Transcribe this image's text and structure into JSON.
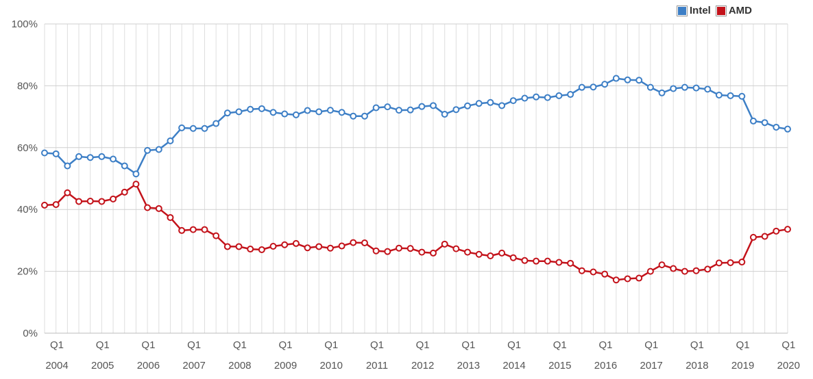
{
  "chart_data": {
    "type": "line",
    "ylim": [
      0,
      100
    ],
    "yticks": [
      "0%",
      "20%",
      "40%",
      "60%",
      "80%",
      "100%"
    ],
    "xticks": [
      {
        "q": "Q1",
        "year": "2004"
      },
      {
        "q": "Q1",
        "year": "2005"
      },
      {
        "q": "Q1",
        "year": "2006"
      },
      {
        "q": "Q1",
        "year": "2007"
      },
      {
        "q": "Q1",
        "year": "2008"
      },
      {
        "q": "Q1",
        "year": "2009"
      },
      {
        "q": "Q1",
        "year": "2010"
      },
      {
        "q": "Q1",
        "year": "2011"
      },
      {
        "q": "Q1",
        "year": "2012"
      },
      {
        "q": "Q1",
        "year": "2013"
      },
      {
        "q": "Q1",
        "year": "2014"
      },
      {
        "q": "Q1",
        "year": "2015"
      },
      {
        "q": "Q1",
        "year": "2016"
      },
      {
        "q": "Q1",
        "year": "2017"
      },
      {
        "q": "Q1",
        "year": "2018"
      },
      {
        "q": "Q1",
        "year": "2019"
      },
      {
        "q": "Q1",
        "year": "2020"
      }
    ],
    "grid": true,
    "legend_position": "top-right",
    "series": [
      {
        "name": "Intel",
        "color": "#3d7fc6",
        "values": [
          58.3,
          58.0,
          54.1,
          57.1,
          56.8,
          57.1,
          56.3,
          54.1,
          51.5,
          59.1,
          59.4,
          62.2,
          66.4,
          66.2,
          66.2,
          67.8,
          71.2,
          71.6,
          72.4,
          72.6,
          71.4,
          70.9,
          70.6,
          72.0,
          71.6,
          72.1,
          71.4,
          70.2,
          70.2,
          72.9,
          73.2,
          72.1,
          72.2,
          73.3,
          73.6,
          70.8,
          72.3,
          73.5,
          74.3,
          74.6,
          73.6,
          75.2,
          76.0,
          76.4,
          76.2,
          76.8,
          77.2,
          79.5,
          79.6,
          80.5,
          82.4,
          81.9,
          81.8,
          79.5,
          77.7,
          79.1,
          79.5,
          79.3,
          78.9,
          77.0,
          76.8,
          76.6,
          68.6,
          68.1,
          66.6,
          66.0
        ]
      },
      {
        "name": "AMD",
        "color": "#c3121a",
        "values": [
          41.4,
          41.6,
          45.4,
          42.6,
          42.7,
          42.6,
          43.4,
          45.6,
          48.2,
          40.6,
          40.3,
          37.4,
          33.2,
          33.5,
          33.5,
          31.5,
          28.0,
          28.0,
          27.2,
          27.0,
          28.1,
          28.6,
          29.0,
          27.6,
          28.0,
          27.5,
          28.2,
          29.3,
          29.2,
          26.6,
          26.4,
          27.5,
          27.4,
          26.2,
          25.9,
          28.8,
          27.3,
          26.2,
          25.5,
          25.0,
          25.9,
          24.4,
          23.5,
          23.3,
          23.3,
          22.9,
          22.6,
          20.2,
          19.8,
          19.1,
          17.2,
          17.6,
          17.8,
          20.0,
          22.1,
          20.9,
          20.0,
          20.2,
          20.7,
          22.7,
          22.8,
          23.0,
          31.0,
          31.3,
          33.0,
          33.6
        ]
      }
    ]
  }
}
